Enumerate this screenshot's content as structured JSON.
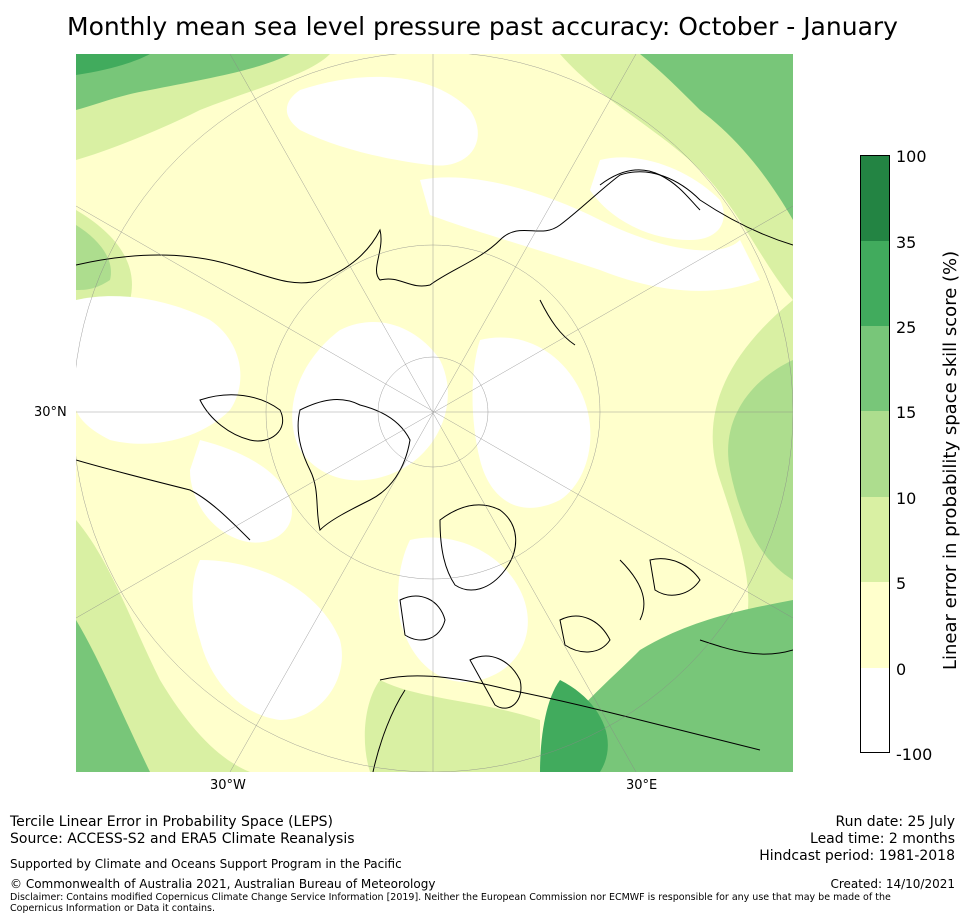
{
  "title": "Monthly mean sea level pressure past accuracy: October - January",
  "map": {
    "lat_label": "30°N",
    "lon_labels": [
      "30°W",
      "30°E"
    ],
    "projection": "north polar stereographic",
    "graticule": true,
    "colors": {
      "white": "#ffffff",
      "c0_5": "#ffffcc",
      "c5_10": "#d9f0a3",
      "c10_15": "#addd8e",
      "c15_25": "#78c679",
      "c25_35": "#41ab5d",
      "c35_100": "#238443"
    }
  },
  "colorbar": {
    "label": "Linear error in probability space skill score (%)",
    "ticks": [
      "100",
      "35",
      "25",
      "15",
      "10",
      "5",
      "0",
      "-100"
    ],
    "bands": [
      {
        "from": "35",
        "to": "100",
        "color": "#238443"
      },
      {
        "from": "25",
        "to": "35",
        "color": "#41ab5d"
      },
      {
        "from": "15",
        "to": "25",
        "color": "#78c679"
      },
      {
        "from": "10",
        "to": "15",
        "color": "#addd8e"
      },
      {
        "from": "5",
        "to": "10",
        "color": "#d9f0a3"
      },
      {
        "from": "0",
        "to": "5",
        "color": "#ffffcc"
      },
      {
        "from": "-100",
        "to": "0",
        "color": "#ffffff"
      }
    ]
  },
  "footer": {
    "line1": "Tercile Linear Error in Probability Space (LEPS)",
    "line2": "Source: ACCESS-S2 and ERA5 Climate Reanalysis",
    "support": "Supported by Climate and Oceans Support Program in the Pacific",
    "copyright": "© Commonwealth of Australia 2021, Australian Bureau of Meteorology",
    "disclaimer": "Disclaimer: Contains modified Copernicus Climate Change Service Information [2019]. Neither the European Commission nor ECMWF is responsible for any use that may be made of the Copernicus Information or Data it contains.",
    "run_date": "Run date: 25 July",
    "lead_time": "Lead time: 2 months",
    "hindcast": "Hindcast period: 1981-2018",
    "created": "Created: 14/10/2021"
  }
}
